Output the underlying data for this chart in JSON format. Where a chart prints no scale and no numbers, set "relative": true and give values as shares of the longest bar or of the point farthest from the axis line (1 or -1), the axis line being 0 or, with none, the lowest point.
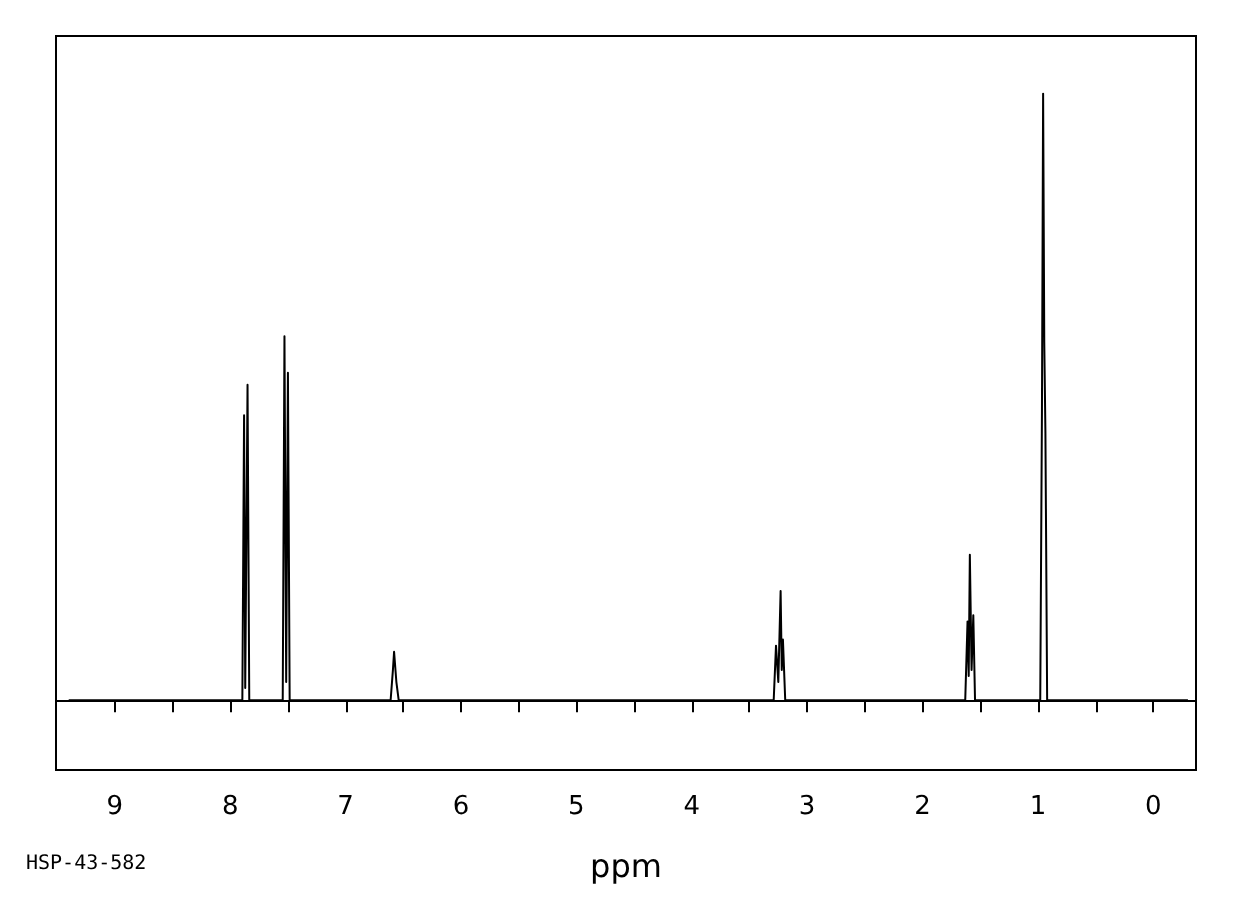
{
  "chart_data": {
    "type": "line",
    "relative": true,
    "color": "#000000",
    "marker": "none",
    "xlabel": "ppm",
    "annotations": [
      "HSP-43-582"
    ],
    "xlim": [
      9.51,
      -0.37
    ],
    "xticks": [
      9,
      {
        "value": 8.5,
        "label": null
      },
      8,
      {
        "value": 7.5,
        "label": null
      },
      7,
      {
        "value": 6.5,
        "label": null
      },
      6,
      {
        "value": 5.5,
        "label": null
      },
      5,
      {
        "value": 4.5,
        "label": null
      },
      4,
      {
        "value": 3.5,
        "label": null
      },
      3,
      {
        "value": 2.5,
        "label": null
      },
      2,
      {
        "value": 1.5,
        "label": null
      },
      1,
      {
        "value": 0.5,
        "label": null
      },
      0
    ],
    "x": [
      9.4,
      7.95,
      7.895,
      7.88,
      7.87,
      7.85,
      7.835,
      7.545,
      7.53,
      7.515,
      7.5,
      7.485,
      6.61,
      6.59,
      6.58,
      6.56,
      6.54,
      3.29,
      3.27,
      3.25,
      3.23,
      3.22,
      3.21,
      3.19,
      1.63,
      1.61,
      1.6,
      1.59,
      1.575,
      1.56,
      1.545,
      0.98,
      0.965,
      0.955,
      0.945,
      0.935,
      0.92,
      -0.3
    ],
    "values": [
      0,
      0,
      0,
      0.47,
      0.02,
      0.52,
      0,
      0,
      0.6,
      0.03,
      0.54,
      0,
      0,
      0.05,
      0.08,
      0.03,
      0,
      0,
      0.09,
      0.03,
      0.18,
      0.05,
      0.1,
      0,
      0,
      0.13,
      0.04,
      0.24,
      0.05,
      0.14,
      0,
      0,
      0.48,
      1.0,
      0.59,
      0.44,
      0,
      0
    ]
  }
}
